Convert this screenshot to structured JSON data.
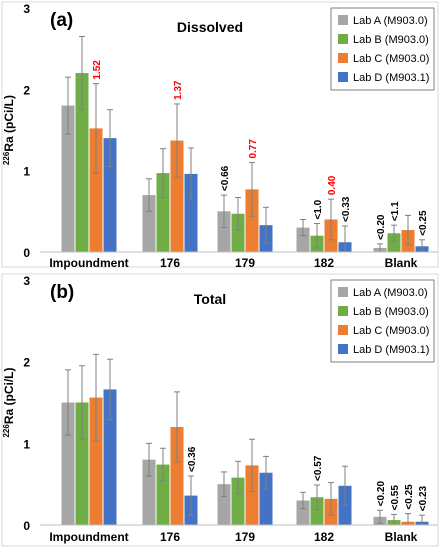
{
  "chart_data": [
    {
      "type": "bar",
      "panel_label": "(a)",
      "title": "Dissolved",
      "ylabel_sup": "226",
      "ylabel_main": "Ra (pCi/L)",
      "ylim": [
        0,
        3
      ],
      "yticks": [
        "0",
        "1",
        "2",
        "3"
      ],
      "grid": false,
      "legend_position": "top-right",
      "categories": [
        "Impoundment",
        "176",
        "179",
        "182",
        "Blank"
      ],
      "series": [
        {
          "name": "Lab A (M903.0)",
          "color": "#A6A6A6",
          "values": [
            1.8,
            0.7,
            0.5,
            0.3,
            0.05
          ],
          "errors": [
            0.35,
            0.2,
            0.2,
            0.1,
            0.05
          ]
        },
        {
          "name": "Lab B (M903.0)",
          "color": "#70AD47",
          "values": [
            2.2,
            0.97,
            0.47,
            0.2,
            0.23
          ],
          "errors": [
            0.45,
            0.3,
            0.2,
            0.15,
            0.1
          ]
        },
        {
          "name": "Lab C (M903.0)",
          "color": "#ED7D31",
          "values": [
            1.52,
            1.37,
            0.77,
            0.4,
            0.27
          ],
          "errors": [
            0.55,
            0.45,
            0.33,
            0.25,
            0.18
          ]
        },
        {
          "name": "Lab D (M903.1)",
          "color": "#4472C4",
          "values": [
            1.4,
            0.96,
            0.33,
            0.12,
            0.07
          ],
          "errors": [
            0.35,
            0.32,
            0.22,
            0.2,
            0.08
          ]
        }
      ],
      "annotations": [
        {
          "text": "1.52",
          "category": 0,
          "series": 2,
          "value": 1.52,
          "color": "#FF0000"
        },
        {
          "text": "1.37",
          "category": 1,
          "series": 2,
          "value": 1.37,
          "color": "#FF0000"
        },
        {
          "text": "<0.66",
          "category": 2,
          "series": 0,
          "value": 0.5,
          "color": "#000000"
        },
        {
          "text": "0.77",
          "category": 2,
          "series": 2,
          "value": 0.77,
          "color": "#FF0000"
        },
        {
          "text": "<1.0",
          "category": 3,
          "series": 1,
          "value": 0.2,
          "color": "#000000"
        },
        {
          "text": "0.40",
          "category": 3,
          "series": 2,
          "value": 0.4,
          "color": "#FF0000"
        },
        {
          "text": "<0.33",
          "category": 3,
          "series": 3,
          "value": 0.12,
          "color": "#000000"
        },
        {
          "text": "<0.20",
          "category": 4,
          "series": 0,
          "value": 0.05,
          "color": "#000000"
        },
        {
          "text": "<1.1",
          "category": 4,
          "series": 1,
          "value": 0.23,
          "color": "#000000"
        },
        {
          "text": "<0.25",
          "category": 4,
          "series": 3,
          "value": 0.07,
          "color": "#000000"
        }
      ]
    },
    {
      "type": "bar",
      "panel_label": "(b)",
      "title": "Total",
      "ylabel_sup": "226",
      "ylabel_main": "Ra (pCi/L)",
      "ylim": [
        0,
        3
      ],
      "yticks": [
        "0",
        "1",
        "2",
        "3"
      ],
      "grid": false,
      "legend_position": "top-right",
      "categories": [
        "Impoundment",
        "176",
        "179",
        "182",
        "Blank"
      ],
      "series": [
        {
          "name": "Lab A (M903.0)",
          "color": "#A6A6A6",
          "values": [
            1.5,
            0.8,
            0.5,
            0.3,
            0.1
          ],
          "errors": [
            0.4,
            0.2,
            0.15,
            0.1,
            0.08
          ]
        },
        {
          "name": "Lab B (M903.0)",
          "color": "#70AD47",
          "values": [
            1.5,
            0.74,
            0.58,
            0.34,
            0.06
          ],
          "errors": [
            0.45,
            0.2,
            0.2,
            0.15,
            0.07
          ]
        },
        {
          "name": "Lab C (M903.0)",
          "color": "#ED7D31",
          "values": [
            1.56,
            1.2,
            0.73,
            0.32,
            0.04
          ],
          "errors": [
            0.53,
            0.43,
            0.32,
            0.2,
            0.1
          ]
        },
        {
          "name": "Lab D (M903.1)",
          "color": "#4472C4",
          "values": [
            1.66,
            0.36,
            0.64,
            0.48,
            0.04
          ],
          "errors": [
            0.37,
            0.24,
            0.2,
            0.24,
            0.08
          ]
        }
      ],
      "annotations": [
        {
          "text": "<0.36",
          "category": 1,
          "series": 3,
          "value": 0.36,
          "color": "#000000"
        },
        {
          "text": "<0.57",
          "category": 3,
          "series": 1,
          "value": 0.34,
          "color": "#000000"
        },
        {
          "text": "<0.20",
          "category": 4,
          "series": 0,
          "value": 0.1,
          "color": "#000000"
        },
        {
          "text": "<0.55",
          "category": 4,
          "series": 1,
          "value": 0.06,
          "color": "#000000"
        },
        {
          "text": "<0.25",
          "category": 4,
          "series": 2,
          "value": 0.04,
          "color": "#000000"
        },
        {
          "text": "<0.23",
          "category": 4,
          "series": 3,
          "value": 0.04,
          "color": "#000000"
        }
      ]
    }
  ]
}
